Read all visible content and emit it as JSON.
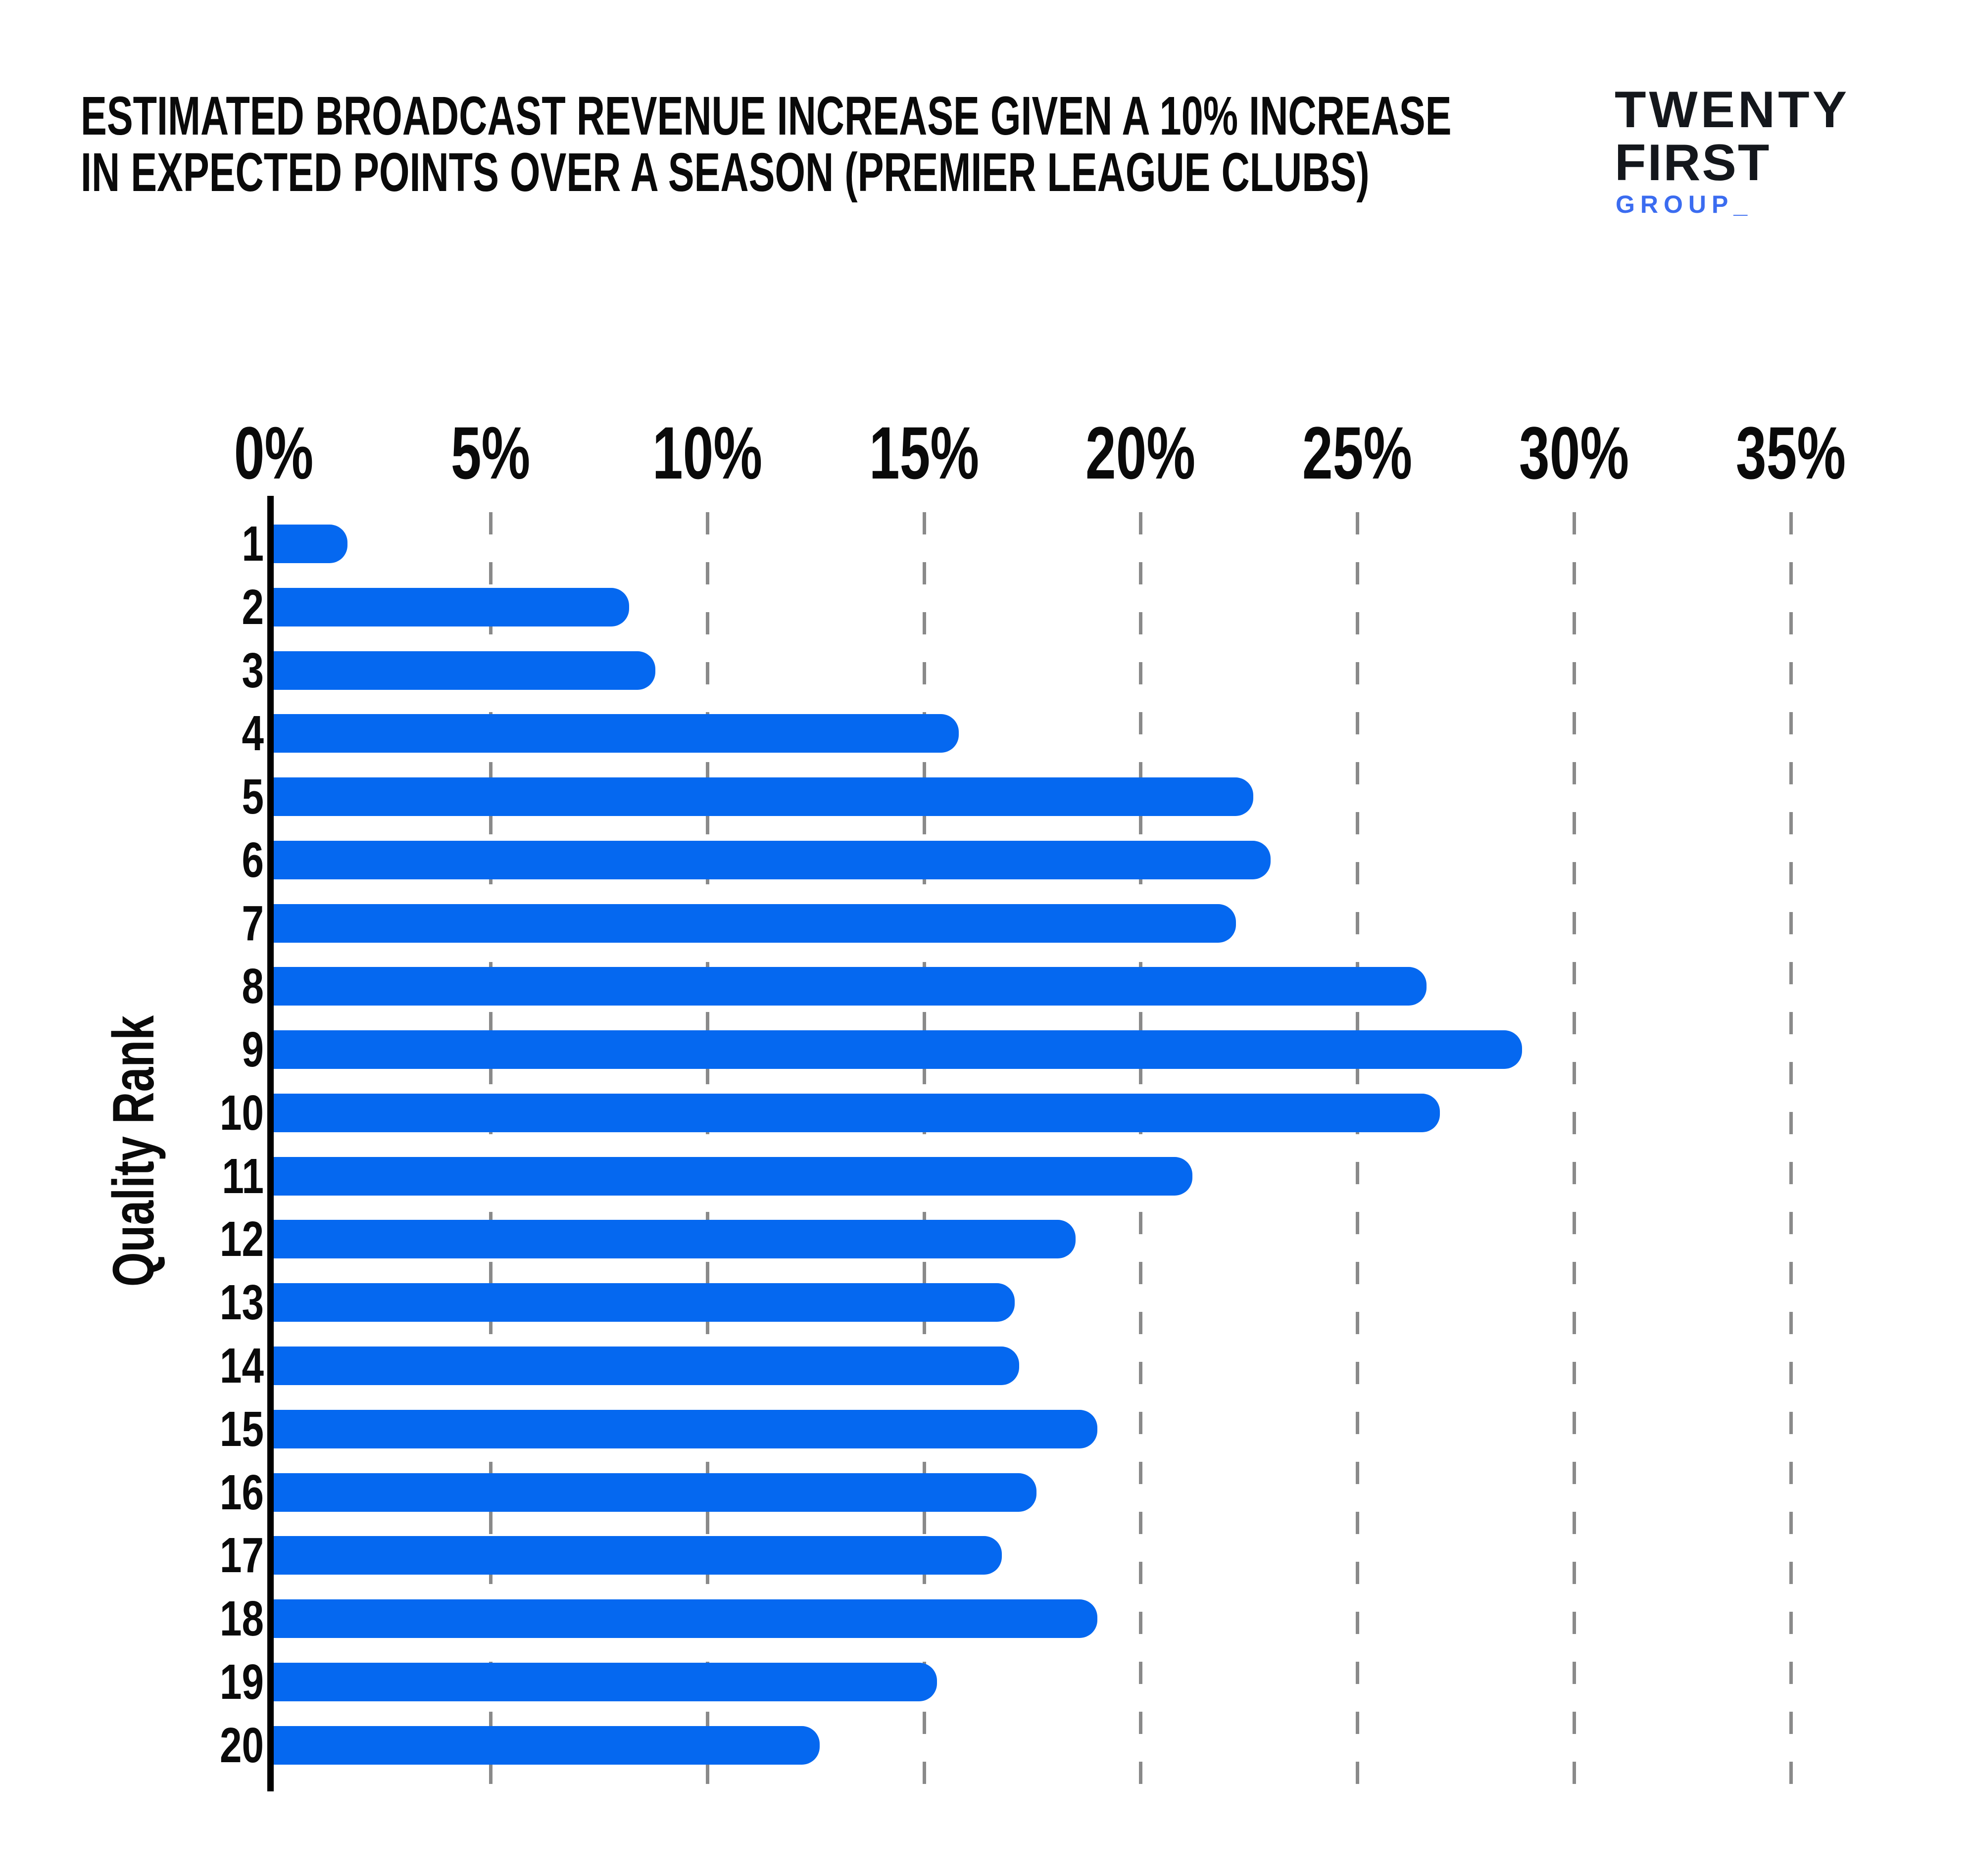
{
  "page": {
    "background": "#ffffff"
  },
  "header": {
    "title_line1": "ESTIMATED BROADCAST REVENUE INCREASE GIVEN A 10% INCREASE",
    "title_line2": "IN EXPECTED POINTS OVER A SEASON (PREMIER LEAGUE CLUBS)"
  },
  "logo": {
    "word1": "TWENTY",
    "word2": "FIRST",
    "word3": "GROUP_",
    "wordmark_color": "#14171c",
    "group_color": "#3b6cf0"
  },
  "chart_data": {
    "type": "bar",
    "orientation": "horizontal",
    "title": "Estimated broadcast revenue increase given a 10% increase in expected points over a season (Premier League clubs)",
    "ylabel": "Quality Rank",
    "xlabel": "",
    "categories": [
      "1",
      "2",
      "3",
      "4",
      "5",
      "6",
      "7",
      "8",
      "9",
      "10",
      "11",
      "12",
      "13",
      "14",
      "15",
      "16",
      "17",
      "18",
      "19",
      "20"
    ],
    "values": [
      1.7,
      8.2,
      8.8,
      15.8,
      22.6,
      23.0,
      22.2,
      26.6,
      28.8,
      26.9,
      21.2,
      18.5,
      17.1,
      17.2,
      19.0,
      17.6,
      16.8,
      19.0,
      15.3,
      12.6
    ],
    "unit": "%",
    "xlim": [
      0,
      35
    ],
    "x_ticks": [
      "0%",
      "5%",
      "10%",
      "15%",
      "20%",
      "25%",
      "30%",
      "35%"
    ],
    "x_tick_values": [
      0,
      5,
      10,
      15,
      20,
      25,
      30,
      35
    ],
    "grid": "vertical dashed gridlines at 5% intervals",
    "legend": "none",
    "bar_color": "#0568f0",
    "gridline_color": "#8a8a8a",
    "axis_color": "#000000"
  }
}
